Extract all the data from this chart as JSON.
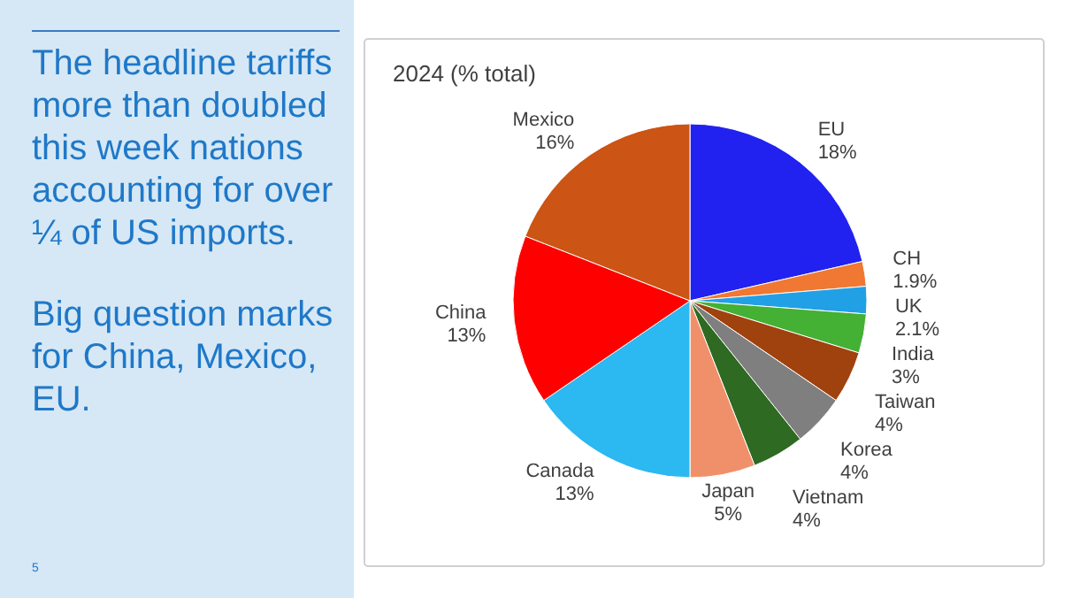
{
  "chart_data": {
    "type": "pie",
    "title": "2024 (% total)",
    "categories": [
      "EU",
      "CH",
      "UK",
      "India",
      "Taiwan",
      "Korea",
      "Vietnam",
      "Japan",
      "Canada",
      "China",
      "Mexico"
    ],
    "values": [
      18,
      1.9,
      2.1,
      3,
      4,
      4,
      4,
      5,
      13,
      13,
      16
    ],
    "value_labels": [
      "18%",
      "1.9%",
      "2.1%",
      "3%",
      "4%",
      "4%",
      "4%",
      "5%",
      "13%",
      "13%",
      "16%"
    ],
    "colors": [
      "#2222f0",
      "#f07832",
      "#22a0e6",
      "#44b034",
      "#a0420e",
      "#7f7f7f",
      "#2e6a22",
      "#f0906a",
      "#2cb8f0",
      "#ff0000",
      "#cc5414"
    ],
    "legend": false,
    "annotations": [
      "The headline tariffs more than doubled this week nations accounting for over ¼ of US imports.",
      "Big question marks for China, Mexico, EU.",
      "5"
    ]
  }
}
